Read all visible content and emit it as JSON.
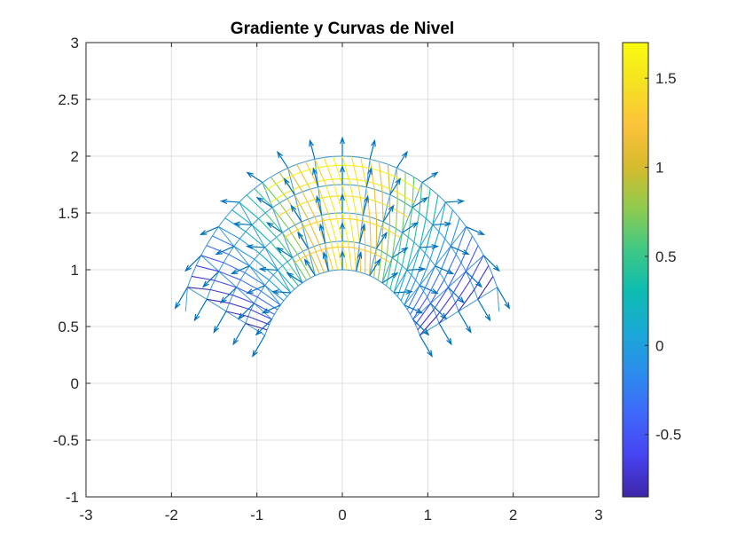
{
  "chart_data": {
    "type": "quiver",
    "title": "Gradiente y Curvas de Nivel",
    "xlabel": "",
    "ylabel": "",
    "xlim": [
      -3,
      3
    ],
    "ylim": [
      -1,
      3
    ],
    "xticks": [
      -3,
      -2,
      -1,
      0,
      1,
      2,
      3
    ],
    "xtick_labels": [
      "-3",
      "-2",
      "-1",
      "0",
      "1",
      "2",
      "3"
    ],
    "yticks": [
      -1,
      -0.5,
      0,
      0.5,
      1,
      1.5,
      2,
      2.5,
      3
    ],
    "ytick_labels": [
      "-1",
      "-0.5",
      "0",
      "0.5",
      "1",
      "1.5",
      "2",
      "2.5",
      "3"
    ],
    "grid": true,
    "domain": {
      "description_units": "polar grid: radius r in [1, 2], angle theta in degrees",
      "r_range": [
        1,
        2
      ],
      "theta_range_deg": [
        25,
        155
      ],
      "r_levels": [
        1,
        1.25,
        1.5,
        1.75,
        2
      ],
      "theta_steps": 14
    },
    "contour_levels": [
      -0.75,
      -0.5,
      -0.25,
      0,
      0.25,
      0.5,
      0.75,
      1,
      1.25,
      1.5
    ],
    "quiver_color": "#0072BD",
    "colorbar": {
      "clim": [
        -0.85,
        1.7
      ],
      "ticks": [
        -0.5,
        0,
        0.5,
        1,
        1.5
      ],
      "tick_labels": [
        "-0.5",
        "0",
        "0.5",
        "1",
        "1.5"
      ],
      "colormap": [
        "#3E26A8",
        "#4743F1",
        "#3F68FB",
        "#2C8CEC",
        "#1AA9D7",
        "#0DBCB0",
        "#40C885",
        "#90CB4E",
        "#D7BB2E",
        "#FCC23A",
        "#F5E122",
        "#F9FB0E"
      ]
    }
  }
}
